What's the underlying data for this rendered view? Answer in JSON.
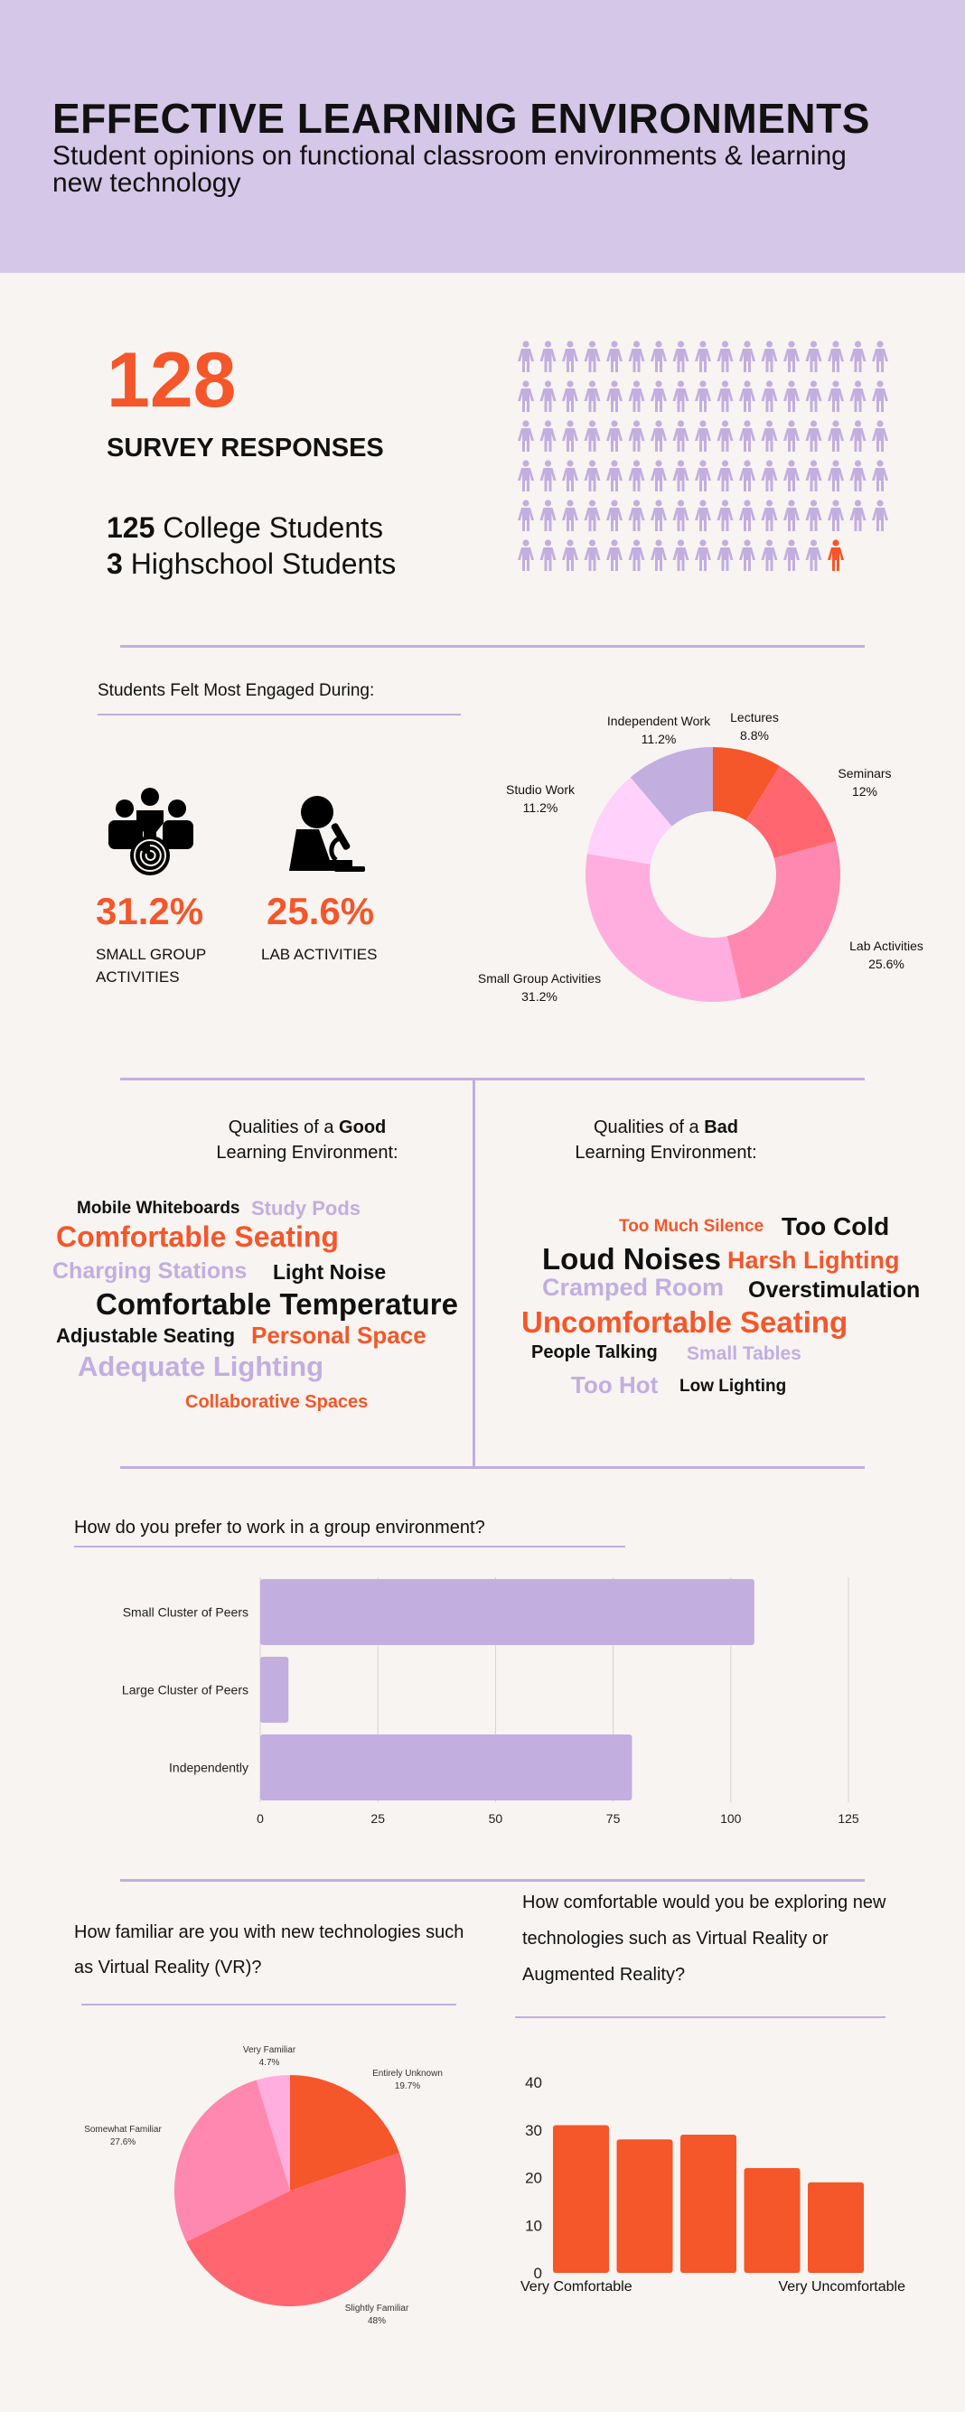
{
  "header": {
    "title": "EFFECTIVE LEARNING ENVIRONMENTS",
    "subtitle": "Student opinions on functional classroom environments  & learning new technology"
  },
  "survey": {
    "total": "128",
    "label": "SURVEY RESPONSES",
    "college_count": "125",
    "college_label": "College Students",
    "highschool_count": "3",
    "highschool_label": "Highschool Students",
    "pictogram": {
      "icon": "person-icon",
      "total_icons": 100,
      "highlighted_icons": 1,
      "base_color": "#C2AEDF",
      "highlight_color": "#F5562A"
    }
  },
  "engaged": {
    "question": "Students Felt Most Engaged During:",
    "highlights": [
      {
        "icon": "group-icon",
        "value": "31.2%",
        "label_line1": "SMALL GROUP",
        "label_line2": "ACTIVITIES"
      },
      {
        "icon": "microscope-icon",
        "value": "25.6%",
        "label_line1": "LAB ACTIVITIES",
        "label_line2": ""
      }
    ]
  },
  "qualities": {
    "good": {
      "head_pre": "Qualities of a ",
      "head_bold": "Good",
      "head_line2": "Learning Environment:",
      "words": [
        {
          "text": "Mobile Whiteboards",
          "color": "#111111"
        },
        {
          "text": "Study Pods",
          "color": "#C2AEDF"
        },
        {
          "text": "Comfortable Seating",
          "color": "#F5562A"
        },
        {
          "text": "Charging Stations",
          "color": "#C2AEDF"
        },
        {
          "text": "Light Noise",
          "color": "#111111"
        },
        {
          "text": "Comfortable Temperature",
          "color": "#111111"
        },
        {
          "text": "Adjustable Seating",
          "color": "#111111"
        },
        {
          "text": "Personal Space",
          "color": "#F5562A"
        },
        {
          "text": "Adequate Lighting",
          "color": "#C2AEDF"
        },
        {
          "text": "Collaborative Spaces",
          "color": "#F5562A"
        }
      ]
    },
    "bad": {
      "head_pre": "Qualities of a ",
      "head_bold": "Bad",
      "head_line2": "Learning Environment:",
      "words": [
        {
          "text": "Too Much Silence",
          "color": "#F5562A"
        },
        {
          "text": "Too Cold",
          "color": "#111111"
        },
        {
          "text": "Loud Noises",
          "color": "#111111"
        },
        {
          "text": "Harsh Lighting",
          "color": "#F5562A"
        },
        {
          "text": "Cramped Room",
          "color": "#C2AEDF"
        },
        {
          "text": "Overstimulation",
          "color": "#111111"
        },
        {
          "text": "Uncomfortable Seating",
          "color": "#F5562A"
        },
        {
          "text": "People Talking",
          "color": "#111111"
        },
        {
          "text": "Small Tables",
          "color": "#C2AEDF"
        },
        {
          "text": "Too Hot",
          "color": "#C2AEDF"
        },
        {
          "text": "Low Lighting",
          "color": "#111111"
        }
      ]
    }
  },
  "group_question": "How do you prefer to work in a group environment?",
  "vr_question": "How familiar are you with new technologies such as Virtual Reality (VR)?",
  "comfort_question": "How comfortable would you be exploring new technologies such as Virtual Reality or Augmented Reality?",
  "colors": {
    "accent": "#F5562A",
    "lavender": "#C2AEDF",
    "header_bg": "#D5C7E8",
    "page_bg": "#F7F4F1"
  },
  "chart_data": [
    {
      "type": "donut",
      "title": "Students Felt Most Engaged During:",
      "categories": [
        "Lectures",
        "Seminars",
        "Lab Activities",
        "Small Group Activities",
        "Studio Work",
        "Independent Work"
      ],
      "values": [
        8.8,
        12,
        25.6,
        31.2,
        11.2,
        11.2
      ],
      "labels": [
        "8.8%",
        "12%",
        "25.6%",
        "31.2%",
        "11.2%",
        "11.2%"
      ],
      "colors": [
        "#F5562A",
        "#FF6670",
        "#FF88B0",
        "#FFAEDF",
        "#FFD1FB",
        "#C2AEDF"
      ]
    },
    {
      "type": "bar",
      "orientation": "horizontal",
      "title": "How do you prefer to work in a group environment?",
      "categories": [
        "Small Cluster of Peers",
        "Large Cluster of Peers",
        "Independently"
      ],
      "values": [
        105,
        6,
        79
      ],
      "xlim": [
        0,
        125
      ],
      "xticks": [
        "0",
        "25",
        "50",
        "75",
        "100",
        "125"
      ],
      "grid": true,
      "color": "#C2AEDF"
    },
    {
      "type": "pie",
      "title": "How familiar are you with new technologies such as Virtual Reality (VR)?",
      "categories": [
        "Entirely Unknown",
        "Slightly Familiar",
        "Somewhat Familiar",
        "Very Familiar"
      ],
      "values": [
        19.7,
        48,
        27.6,
        4.7
      ],
      "labels": [
        "19.7%",
        "48%",
        "27.6%",
        "4.7%"
      ],
      "colors": [
        "#F5562A",
        "#FF6670",
        "#FF88B0",
        "#FFAEDF"
      ]
    },
    {
      "type": "bar",
      "title": "How comfortable would you be exploring new technologies such as Virtual Reality or Augmented Reality?",
      "categories": [
        "1",
        "2",
        "3",
        "4",
        "5"
      ],
      "values": [
        31,
        28,
        29,
        22,
        19
      ],
      "ylim": [
        0,
        40
      ],
      "yticks": [
        "0",
        "10",
        "20",
        "30",
        "40"
      ],
      "xlabel_left": "Very Comfortable",
      "xlabel_right": "Very Uncomfortable",
      "grid": false,
      "color": "#F5562A"
    }
  ]
}
